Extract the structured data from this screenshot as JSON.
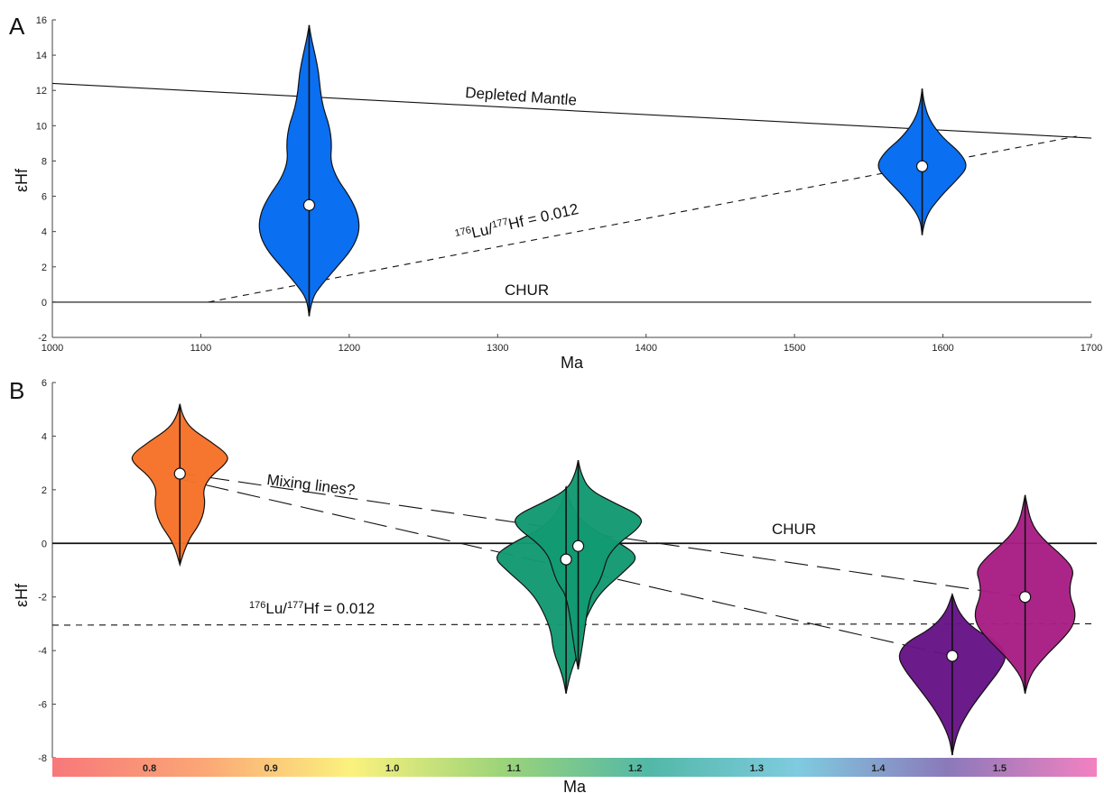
{
  "chart_data": [
    {
      "type": "violin",
      "panel_label": "A",
      "xlabel": "Ma",
      "ylabel": "εHf",
      "xlim": [
        1000,
        1700
      ],
      "ylim": [
        -2,
        16
      ],
      "x_ticks": [
        1000,
        1100,
        1200,
        1300,
        1400,
        1500,
        1600,
        1700
      ],
      "y_ticks": [
        -2,
        0,
        2,
        4,
        6,
        8,
        10,
        12,
        14,
        16
      ],
      "reference_lines": [
        {
          "name": "Depleted Mantle",
          "style": "solid",
          "points": [
            [
              1000,
              12.4
            ],
            [
              1700,
              9.3
            ]
          ]
        },
        {
          "name": "CHUR",
          "style": "solid",
          "points": [
            [
              1000,
              0
            ],
            [
              1700,
              0
            ]
          ]
        },
        {
          "name": "176Lu/177Hf = 0.012",
          "style": "dashed",
          "points": [
            [
              1105,
              0
            ],
            [
              1690,
              9.4
            ]
          ]
        }
      ],
      "annotations": {
        "depleted_mantle": "Depleted Mantle",
        "chur": "CHUR",
        "lu_prefix": "176",
        "lu_mid": "Lu/",
        "lu_sup2": "177",
        "lu_suffix": "Hf = 0.012"
      },
      "violins": [
        {
          "x": 1173,
          "median": 5.5,
          "min": -0.8,
          "max": 15.7,
          "halfwidth_ma": 34,
          "color": "#0a6ff0",
          "profile": [
            [
              -0.8,
              0
            ],
            [
              0.2,
              0.05
            ],
            [
              1.0,
              0.25
            ],
            [
              2.0,
              0.55
            ],
            [
              3.0,
              0.85
            ],
            [
              4.0,
              1.0
            ],
            [
              5.0,
              0.97
            ],
            [
              6.0,
              0.8
            ],
            [
              7.0,
              0.55
            ],
            [
              8.0,
              0.42
            ],
            [
              9.0,
              0.45
            ],
            [
              10.0,
              0.4
            ],
            [
              11.0,
              0.28
            ],
            [
              12.0,
              0.22
            ],
            [
              13.0,
              0.19
            ],
            [
              14.0,
              0.12
            ],
            [
              15.0,
              0.04
            ],
            [
              15.7,
              0
            ]
          ]
        },
        {
          "x": 1586,
          "median": 7.7,
          "min": 3.8,
          "max": 12.1,
          "halfwidth_ma": 31,
          "color": "#0a6ff0",
          "profile": [
            [
              3.8,
              0
            ],
            [
              4.8,
              0.05
            ],
            [
              6.0,
              0.4
            ],
            [
              7.0,
              0.78
            ],
            [
              7.7,
              1.0
            ],
            [
              8.5,
              0.82
            ],
            [
              9.3,
              0.45
            ],
            [
              10.3,
              0.16
            ],
            [
              11.3,
              0.04
            ],
            [
              12.1,
              0
            ]
          ]
        }
      ]
    },
    {
      "type": "violin",
      "panel_label": "B",
      "xlabel": "Ma",
      "ylabel": "εHf",
      "ylim": [
        -8,
        6
      ],
      "y_ticks": [
        -8,
        -6,
        -4,
        -2,
        0,
        2,
        4,
        6
      ],
      "xlim_ga": [
        0.72,
        1.58
      ],
      "colorbar": {
        "ticks": [
          0.8,
          0.9,
          1.0,
          1.1,
          1.2,
          1.3,
          1.4,
          1.5
        ],
        "stops": [
          "#f7787a",
          "#fba676",
          "#fbf27e",
          "#9dd479",
          "#52b8a7",
          "#7fcbe0",
          "#8b79ba",
          "#f381c1"
        ]
      },
      "reference_lines": [
        {
          "name": "CHUR",
          "style": "solid",
          "points": [
            [
              0.72,
              0
            ],
            [
              1.58,
              0
            ]
          ]
        },
        {
          "name": "176Lu/177Hf = 0.012",
          "style": "dashed",
          "points": [
            [
              0.72,
              -3.05
            ],
            [
              1.58,
              -3.0
            ]
          ]
        },
        {
          "name": "Mixing lines?",
          "style": "longdash",
          "points": [
            [
              0.82,
              2.65
            ],
            [
              1.521,
              -2.0
            ]
          ]
        },
        {
          "name": "Mixing lines?",
          "style": "longdash",
          "points": [
            [
              0.82,
              2.45
            ],
            [
              1.461,
              -4.2
            ]
          ]
        }
      ],
      "annotations": {
        "mixing": "Mixing lines?",
        "chur": "CHUR",
        "lu_prefix": "176",
        "lu_mid": "Lu/",
        "lu_sup2": "177",
        "lu_suffix": "Hf = 0.012"
      },
      "violins": [
        {
          "x": 0.825,
          "median": 2.6,
          "min": -0.8,
          "max": 5.2,
          "halfwidth_ga": 0.042,
          "color": "#f77228",
          "profile": [
            [
              -0.8,
              0
            ],
            [
              0.0,
              0.12
            ],
            [
              0.8,
              0.42
            ],
            [
              1.5,
              0.5
            ],
            [
              2.0,
              0.45
            ],
            [
              2.5,
              0.6
            ],
            [
              3.0,
              0.92
            ],
            [
              3.3,
              0.95
            ],
            [
              3.8,
              0.6
            ],
            [
              4.3,
              0.2
            ],
            [
              4.8,
              0.05
            ],
            [
              5.2,
              0
            ]
          ]
        },
        {
          "x": 1.143,
          "median": -0.6,
          "min": -5.6,
          "max": 2.1,
          "halfwidth_ga": 0.06,
          "color": "#139a72",
          "profile": [
            [
              -5.6,
              0
            ],
            [
              -4.9,
              0.05
            ],
            [
              -4.0,
              0.18
            ],
            [
              -3.3,
              0.2
            ],
            [
              -2.5,
              0.32
            ],
            [
              -1.8,
              0.48
            ],
            [
              -1.0,
              0.82
            ],
            [
              -0.5,
              1.0
            ],
            [
              0.0,
              0.75
            ],
            [
              0.6,
              0.3
            ],
            [
              1.3,
              0.08
            ],
            [
              2.1,
              0
            ]
          ]
        },
        {
          "x": 1.153,
          "median": -0.1,
          "min": -4.7,
          "max": 3.1,
          "halfwidth_ga": 0.06,
          "color": "#139a72",
          "profile": [
            [
              -4.7,
              0
            ],
            [
              -4.0,
              0.05
            ],
            [
              -2.0,
              0.15
            ],
            [
              -1.5,
              0.28
            ],
            [
              -1.0,
              0.35
            ],
            [
              -0.5,
              0.4
            ],
            [
              0.0,
              0.55
            ],
            [
              0.6,
              0.85
            ],
            [
              1.0,
              0.88
            ],
            [
              1.5,
              0.5
            ],
            [
              2.0,
              0.15
            ],
            [
              2.6,
              0.04
            ],
            [
              3.1,
              0
            ]
          ]
        },
        {
          "x": 1.461,
          "median": -4.2,
          "min": -7.9,
          "max": -1.9,
          "halfwidth_ga": 0.045,
          "color": "#661486",
          "profile": [
            [
              -7.9,
              0
            ],
            [
              -7.2,
              0.06
            ],
            [
              -6.3,
              0.28
            ],
            [
              -5.3,
              0.65
            ],
            [
              -4.7,
              0.88
            ],
            [
              -4.2,
              1.0
            ],
            [
              -3.7,
              0.85
            ],
            [
              -3.2,
              0.4
            ],
            [
              -2.6,
              0.12
            ],
            [
              -1.9,
              0
            ]
          ]
        },
        {
          "x": 1.521,
          "median": -2.0,
          "min": -5.6,
          "max": 1.8,
          "halfwidth_ga": 0.045,
          "color": "#a81e84",
          "profile": [
            [
              -5.6,
              0
            ],
            [
              -5.0,
              0.06
            ],
            [
              -4.3,
              0.32
            ],
            [
              -3.5,
              0.72
            ],
            [
              -3.0,
              0.9
            ],
            [
              -2.5,
              0.92
            ],
            [
              -2.0,
              0.82
            ],
            [
              -1.5,
              0.82
            ],
            [
              -1.0,
              0.9
            ],
            [
              -0.5,
              0.7
            ],
            [
              0.2,
              0.3
            ],
            [
              0.8,
              0.1
            ],
            [
              1.8,
              0
            ]
          ]
        }
      ]
    }
  ]
}
